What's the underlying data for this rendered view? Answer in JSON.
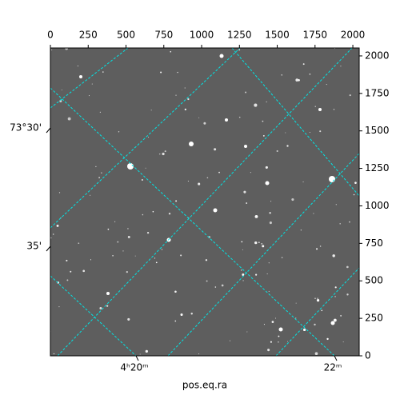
{
  "chart_data": {
    "type": "image",
    "xlabel": "pos.eq.ra",
    "xlim": [
      0,
      2042
    ],
    "xticks": [
      0,
      250,
      500,
      750,
      1000,
      1250,
      1500,
      1750,
      2000
    ],
    "ylim": [
      0,
      2053
    ],
    "yticks": [
      0,
      250,
      500,
      750,
      1000,
      1250,
      1500,
      1750,
      2000
    ],
    "ra_tick_labels": [
      "4ʰ20ᵐ",
      "22ᵐ"
    ],
    "dec_tick_labels": [
      "73°30'",
      "35'"
    ],
    "grid_color": "#00e5e5"
  }
}
